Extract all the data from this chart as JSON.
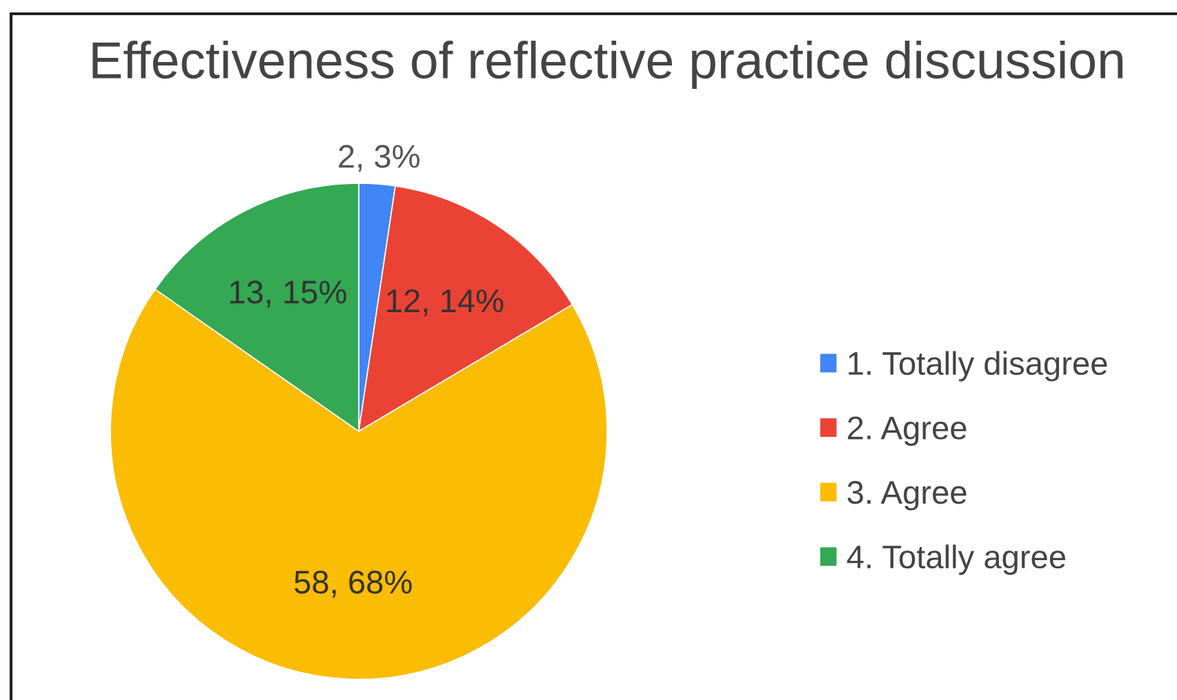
{
  "chart_data": {
    "type": "pie",
    "title": "Effectiveness of reflective practice discussion",
    "categories": [
      "1. Totally disagree",
      "2. Agree",
      "3. Agree",
      "4. Totally agree"
    ],
    "values": [
      2,
      12,
      58,
      13
    ],
    "colors": [
      "#4285f4",
      "#ea4335",
      "#fbbc04",
      "#34a853"
    ],
    "value_labels": [
      "2, 3%",
      "12, 14%",
      "58, 68%",
      "13, 15%"
    ],
    "legend": "right"
  }
}
